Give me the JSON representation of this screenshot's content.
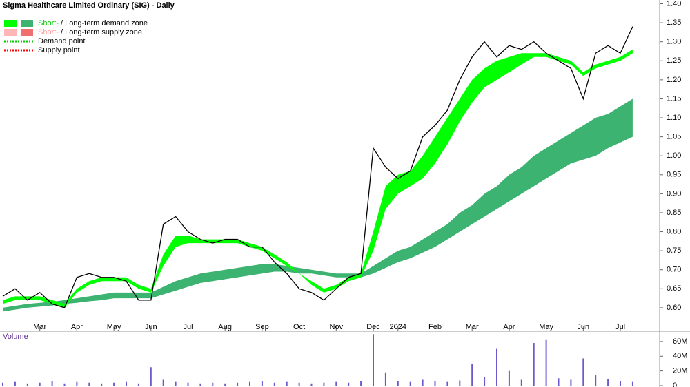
{
  "chart_data": {
    "type": "stock",
    "title": "Sigma Healthcare Limited Ordinary (SIG) - Daily",
    "categories": [
      null,
      null,
      null,
      "Mar",
      null,
      null,
      "Apr",
      null,
      null,
      "May",
      null,
      null,
      "Jun",
      null,
      null,
      "Jul",
      null,
      null,
      "Aug",
      null,
      null,
      "Sep",
      null,
      null,
      "Oct",
      null,
      null,
      "Nov",
      null,
      null,
      "Dec",
      null,
      "2024",
      null,
      null,
      "Feb",
      null,
      null,
      "Mar",
      null,
      null,
      "Apr",
      null,
      null,
      "May",
      null,
      null,
      "Jun",
      null,
      null,
      "Jul",
      null
    ],
    "close": [
      0.63,
      0.65,
      0.62,
      0.64,
      0.61,
      0.6,
      0.68,
      0.69,
      0.68,
      0.68,
      0.67,
      0.62,
      0.62,
      0.82,
      0.84,
      0.8,
      0.78,
      0.77,
      0.78,
      0.78,
      0.76,
      0.76,
      0.72,
      0.69,
      0.65,
      0.64,
      0.62,
      0.65,
      0.68,
      0.69,
      1.02,
      0.97,
      0.94,
      0.96,
      1.05,
      1.08,
      1.12,
      1.2,
      1.26,
      1.3,
      1.26,
      1.29,
      1.28,
      1.3,
      1.27,
      1.25,
      1.23,
      1.15,
      1.27,
      1.29,
      1.27,
      1.34
    ],
    "price_color": "#000000",
    "short_term_zone": {
      "color": "#00ff00",
      "upper": [
        0.62,
        0.63,
        0.63,
        0.63,
        0.62,
        0.61,
        0.65,
        0.67,
        0.68,
        0.68,
        0.68,
        0.66,
        0.65,
        0.74,
        0.79,
        0.79,
        0.78,
        0.78,
        0.78,
        0.78,
        0.77,
        0.76,
        0.74,
        0.72,
        0.69,
        0.67,
        0.65,
        0.66,
        0.68,
        0.69,
        0.8,
        0.92,
        0.95,
        0.96,
        1.0,
        1.05,
        1.1,
        1.15,
        1.2,
        1.23,
        1.25,
        1.26,
        1.27,
        1.27,
        1.27,
        1.26,
        1.25,
        1.22,
        1.24,
        1.25,
        1.26,
        1.28
      ],
      "lower": [
        0.61,
        0.62,
        0.62,
        0.62,
        0.61,
        0.6,
        0.64,
        0.66,
        0.67,
        0.67,
        0.67,
        0.65,
        0.64,
        0.71,
        0.76,
        0.77,
        0.77,
        0.77,
        0.77,
        0.77,
        0.76,
        0.75,
        0.73,
        0.71,
        0.69,
        0.66,
        0.64,
        0.65,
        0.67,
        0.68,
        0.75,
        0.86,
        0.9,
        0.92,
        0.94,
        0.98,
        1.03,
        1.09,
        1.14,
        1.18,
        1.2,
        1.22,
        1.24,
        1.26,
        1.26,
        1.25,
        1.24,
        1.21,
        1.23,
        1.24,
        1.25,
        1.27
      ]
    },
    "long_term_zone": {
      "color": "#3cb371",
      "upper": [
        0.6,
        0.605,
        0.61,
        0.613,
        0.616,
        0.62,
        0.625,
        0.63,
        0.635,
        0.64,
        0.64,
        0.64,
        0.64,
        0.655,
        0.67,
        0.68,
        0.69,
        0.695,
        0.7,
        0.705,
        0.71,
        0.715,
        0.715,
        0.71,
        0.705,
        0.7,
        0.695,
        0.69,
        0.69,
        0.69,
        0.71,
        0.73,
        0.75,
        0.76,
        0.78,
        0.8,
        0.82,
        0.85,
        0.87,
        0.9,
        0.92,
        0.95,
        0.97,
        1.0,
        1.02,
        1.04,
        1.06,
        1.08,
        1.1,
        1.11,
        1.13,
        1.15
      ],
      "lower": [
        0.59,
        0.595,
        0.6,
        0.603,
        0.606,
        0.61,
        0.613,
        0.617,
        0.62,
        0.625,
        0.625,
        0.625,
        0.625,
        0.635,
        0.645,
        0.655,
        0.665,
        0.67,
        0.675,
        0.68,
        0.685,
        0.69,
        0.695,
        0.695,
        0.69,
        0.69,
        0.685,
        0.68,
        0.68,
        0.68,
        0.69,
        0.705,
        0.72,
        0.73,
        0.745,
        0.76,
        0.78,
        0.8,
        0.82,
        0.84,
        0.86,
        0.88,
        0.9,
        0.92,
        0.94,
        0.96,
        0.98,
        0.99,
        1.0,
        1.02,
        1.035,
        1.05
      ]
    },
    "ylim": [
      0.54,
      1.41
    ],
    "yticks": [
      {
        "value": 1.4,
        "label": "1.40"
      },
      1.35,
      {
        "value": 1.3,
        "label": "1.30"
      },
      1.25,
      {
        "value": 1.2,
        "label": "1.20"
      },
      1.15,
      {
        "value": 1.1,
        "label": "1.10"
      },
      1.05,
      {
        "value": 1.0,
        "label": "1.00"
      },
      0.95,
      {
        "value": 0.9,
        "label": "0.90"
      },
      0.85,
      {
        "value": 0.8,
        "label": "0.80"
      },
      0.75,
      {
        "value": 0.7,
        "label": "0.70"
      },
      0.65,
      {
        "value": 0.6,
        "label": "0.60"
      }
    ],
    "legend": [
      {
        "short": "Short-",
        "rest": " / Long-term demand zone",
        "colors": [
          "#00ff00",
          "#3cb371"
        ],
        "short_color": "#00cc00"
      },
      {
        "short": "Short-",
        "rest": " / Long-term supply zone",
        "colors": [
          "#ffb6b6",
          "#f07070"
        ],
        "short_color": "#ff9999"
      },
      {
        "label": "Demand point",
        "color": "#00cc00"
      },
      {
        "label": "Supply point",
        "color": "#ff0000"
      }
    ],
    "volume": {
      "label": "Volume",
      "color": "#6a5acd",
      "values": [
        4,
        5,
        3,
        4,
        6,
        3,
        5,
        4,
        3,
        4,
        5,
        3,
        25,
        8,
        5,
        4,
        3,
        4,
        3,
        4,
        5,
        6,
        4,
        5,
        4,
        3,
        4,
        5,
        4,
        6,
        70,
        18,
        6,
        5,
        8,
        6,
        5,
        7,
        30,
        12,
        50,
        20,
        8,
        58,
        62,
        10,
        8,
        37,
        15,
        9,
        6,
        5
      ],
      "ylim": [
        0,
        73
      ],
      "yticks": [
        {
          "value": 60,
          "label": "60M"
        },
        {
          "value": 40,
          "label": "40M"
        },
        {
          "value": 20,
          "label": "20M"
        },
        0
      ]
    }
  }
}
